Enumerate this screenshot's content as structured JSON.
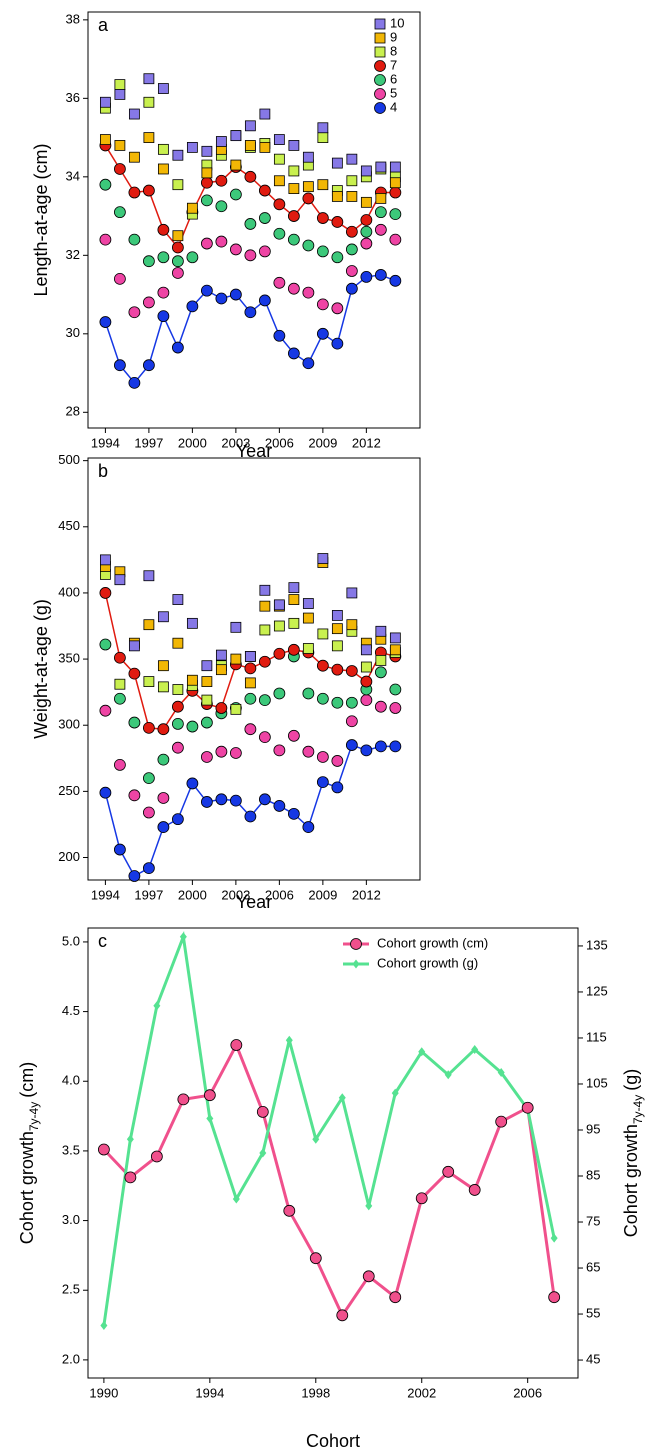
{
  "chart_data": [
    {
      "type": "scatter",
      "label": "a",
      "x_label": "Year",
      "y_label": "Length-at-age (cm)",
      "x": [
        1994,
        1995,
        1996,
        1997,
        1998,
        1999,
        2000,
        2001,
        2002,
        2003,
        2004,
        2005,
        2006,
        2007,
        2008,
        2009,
        2010,
        2011,
        2012,
        2013,
        2014
      ],
      "xlim": [
        1992.8,
        2015.7
      ],
      "xticks": [
        1994,
        1997,
        2000,
        2003,
        2006,
        2009,
        2012
      ],
      "ylim": [
        27.6,
        38.2
      ],
      "yticks": [
        28,
        30,
        32,
        34,
        36,
        38
      ],
      "legend": "top-right",
      "series": [
        {
          "name": "10",
          "color": "#8678e6",
          "marker": "square",
          "line": false,
          "values": [
            35.9,
            36.1,
            35.6,
            36.5,
            36.25,
            34.55,
            34.75,
            34.65,
            34.9,
            35.05,
            35.3,
            35.6,
            34.95,
            34.8,
            34.5,
            35.25,
            34.35,
            34.45,
            34.15,
            34.25,
            34.25
          ]
        },
        {
          "name": "9",
          "color": "#f2b705",
          "marker": "square",
          "line": false,
          "values": [
            34.95,
            34.8,
            34.5,
            35.0,
            34.2,
            32.5,
            33.2,
            34.1,
            34.7,
            34.3,
            34.8,
            34.75,
            33.9,
            33.7,
            33.75,
            33.8,
            33.5,
            33.5,
            33.35,
            33.45,
            33.85
          ]
        },
        {
          "name": "8",
          "color": "#c9f04f",
          "marker": "square",
          "line": false,
          "values": [
            35.75,
            36.35,
            null,
            35.9,
            34.7,
            33.8,
            33.05,
            34.3,
            34.55,
            35.05,
            34.75,
            34.85,
            34.45,
            34.15,
            34.3,
            35.0,
            33.65,
            33.9,
            34.0,
            34.2,
            34.0
          ]
        },
        {
          "name": "7",
          "color": "#e01b10",
          "marker": "circle",
          "line": true,
          "values": [
            34.8,
            34.2,
            33.6,
            33.65,
            32.65,
            32.2,
            33.1,
            33.85,
            33.9,
            34.25,
            34.0,
            33.65,
            33.3,
            33.0,
            33.45,
            32.95,
            32.85,
            32.6,
            32.9,
            33.6,
            33.6
          ]
        },
        {
          "name": "6",
          "color": "#3cc87a",
          "marker": "circle",
          "line": false,
          "values": [
            33.8,
            33.1,
            32.4,
            31.85,
            31.95,
            31.85,
            31.95,
            33.4,
            33.25,
            33.55,
            32.8,
            32.95,
            32.55,
            32.4,
            32.25,
            32.1,
            31.95,
            32.15,
            32.6,
            33.1,
            33.05
          ]
        },
        {
          "name": "5",
          "color": "#ee44a4",
          "marker": "circle",
          "line": false,
          "values": [
            32.4,
            31.4,
            30.55,
            30.8,
            31.05,
            31.55,
            null,
            32.3,
            32.35,
            32.15,
            32.0,
            32.1,
            31.3,
            31.15,
            31.05,
            30.75,
            30.65,
            31.6,
            32.3,
            32.65,
            32.4
          ]
        },
        {
          "name": "4",
          "color": "#1638e4",
          "marker": "circle",
          "line": true,
          "values": [
            30.3,
            29.2,
            28.75,
            29.2,
            30.45,
            29.65,
            30.7,
            31.1,
            30.9,
            31.0,
            30.55,
            30.85,
            29.95,
            29.5,
            29.25,
            30.0,
            29.75,
            31.15,
            31.45,
            31.5,
            31.35
          ]
        }
      ]
    },
    {
      "type": "scatter",
      "label": "b",
      "x_label": "Year",
      "y_label": "Weight-at-age (g)",
      "x": [
        1994,
        1995,
        1996,
        1997,
        1998,
        1999,
        2000,
        2001,
        2002,
        2003,
        2004,
        2005,
        2006,
        2007,
        2008,
        2009,
        2010,
        2011,
        2012,
        2013,
        2014
      ],
      "xlim": [
        1992.8,
        2015.7
      ],
      "xticks": [
        1994,
        1997,
        2000,
        2003,
        2006,
        2009,
        2012
      ],
      "ylim": [
        183,
        502
      ],
      "yticks": [
        200,
        250,
        300,
        350,
        400,
        450,
        500
      ],
      "series": [
        {
          "name": "10",
          "color": "#8678e6",
          "marker": "square",
          "line": false,
          "values": [
            425,
            410,
            360,
            413,
            382,
            395,
            377,
            345,
            353,
            374,
            352,
            402,
            391,
            404,
            392,
            426,
            383,
            400,
            357,
            371,
            366
          ]
        },
        {
          "name": "9",
          "color": "#f2b705",
          "marker": "square",
          "line": false,
          "values": [
            420,
            416,
            362,
            376,
            345,
            362,
            334,
            333,
            342,
            350,
            332,
            390,
            390,
            395,
            381,
            423,
            373,
            376,
            362,
            365,
            357
          ]
        },
        {
          "name": "8",
          "color": "#c9f04f",
          "marker": "square",
          "line": false,
          "values": [
            414,
            331,
            null,
            333,
            329,
            327,
            330,
            319,
            345,
            312,
            352,
            372,
            375,
            377,
            358,
            369,
            360,
            371,
            344,
            349,
            355
          ]
        },
        {
          "name": "7",
          "color": "#e01b10",
          "marker": "circle",
          "line": true,
          "values": [
            400,
            351,
            339,
            298,
            297,
            314,
            326,
            316,
            313,
            346,
            343,
            348,
            354,
            357,
            355,
            345,
            342,
            341,
            333,
            355,
            352
          ]
        },
        {
          "name": "6",
          "color": "#3cc87a",
          "marker": "circle",
          "line": false,
          "values": [
            361,
            320,
            302,
            260,
            274,
            301,
            299,
            302,
            309,
            313,
            320,
            319,
            324,
            352,
            324,
            320,
            317,
            317,
            327,
            340,
            327
          ]
        },
        {
          "name": "5",
          "color": "#ee44a4",
          "marker": "circle",
          "line": false,
          "values": [
            311,
            270,
            247,
            234,
            245,
            283,
            null,
            276,
            280,
            279,
            297,
            291,
            281,
            292,
            280,
            276,
            273,
            303,
            319,
            314,
            313
          ]
        },
        {
          "name": "4",
          "color": "#1638e4",
          "marker": "circle",
          "line": true,
          "values": [
            249,
            206,
            186,
            192,
            223,
            229,
            256,
            242,
            244,
            243,
            231,
            244,
            239,
            233,
            223,
            257,
            253,
            285,
            281,
            284,
            284
          ]
        }
      ]
    },
    {
      "type": "line",
      "label": "c",
      "x_label": "Cohort",
      "y_label": {
        "text": "Cohort growth",
        "sub": "7y-4y",
        "unit": "(cm)"
      },
      "y2_label": {
        "text": "Cohort growth",
        "sub": "7y-4y",
        "unit": "(g)"
      },
      "x": [
        1990,
        1991,
        1992,
        1993,
        1994,
        1995,
        1996,
        1997,
        1998,
        1999,
        2000,
        2001,
        2002,
        2003,
        2004,
        2005,
        2006,
        2007
      ],
      "xlim": [
        1989.4,
        2007.9
      ],
      "xticks": [
        1990,
        1994,
        1998,
        2002,
        2006
      ],
      "ylim": [
        1.87,
        5.1
      ],
      "yticks": [
        {
          "value": 2,
          "label": "2.0"
        },
        2.5,
        {
          "value": 3,
          "label": "3.0"
        },
        3.5,
        {
          "value": 4,
          "label": "4.0"
        },
        4.5,
        {
          "value": 5,
          "label": "5.0"
        }
      ],
      "y2lim": [
        41.1,
        138.9
      ],
      "y2ticks": [
        45,
        55,
        65,
        75,
        85,
        95,
        105,
        115,
        125,
        135
      ],
      "legend": "top-right",
      "series": [
        {
          "name": "Cohort growth (cm)",
          "color": "#f0508c",
          "marker": "circle",
          "values": [
            3.51,
            3.31,
            3.46,
            3.87,
            3.9,
            4.26,
            3.78,
            3.07,
            2.73,
            2.32,
            2.6,
            2.45,
            3.16,
            3.35,
            3.22,
            3.71,
            3.81,
            2.45
          ]
        },
        {
          "name": "Cohort growth (g)",
          "color": "#55e291",
          "marker": "diamond",
          "axis": "y2",
          "values": [
            52.5,
            93,
            122,
            137,
            97.5,
            80,
            90,
            114.5,
            93,
            102,
            78.5,
            103,
            112,
            107,
            112.5,
            107.5,
            99.5,
            71.5
          ]
        }
      ]
    }
  ]
}
